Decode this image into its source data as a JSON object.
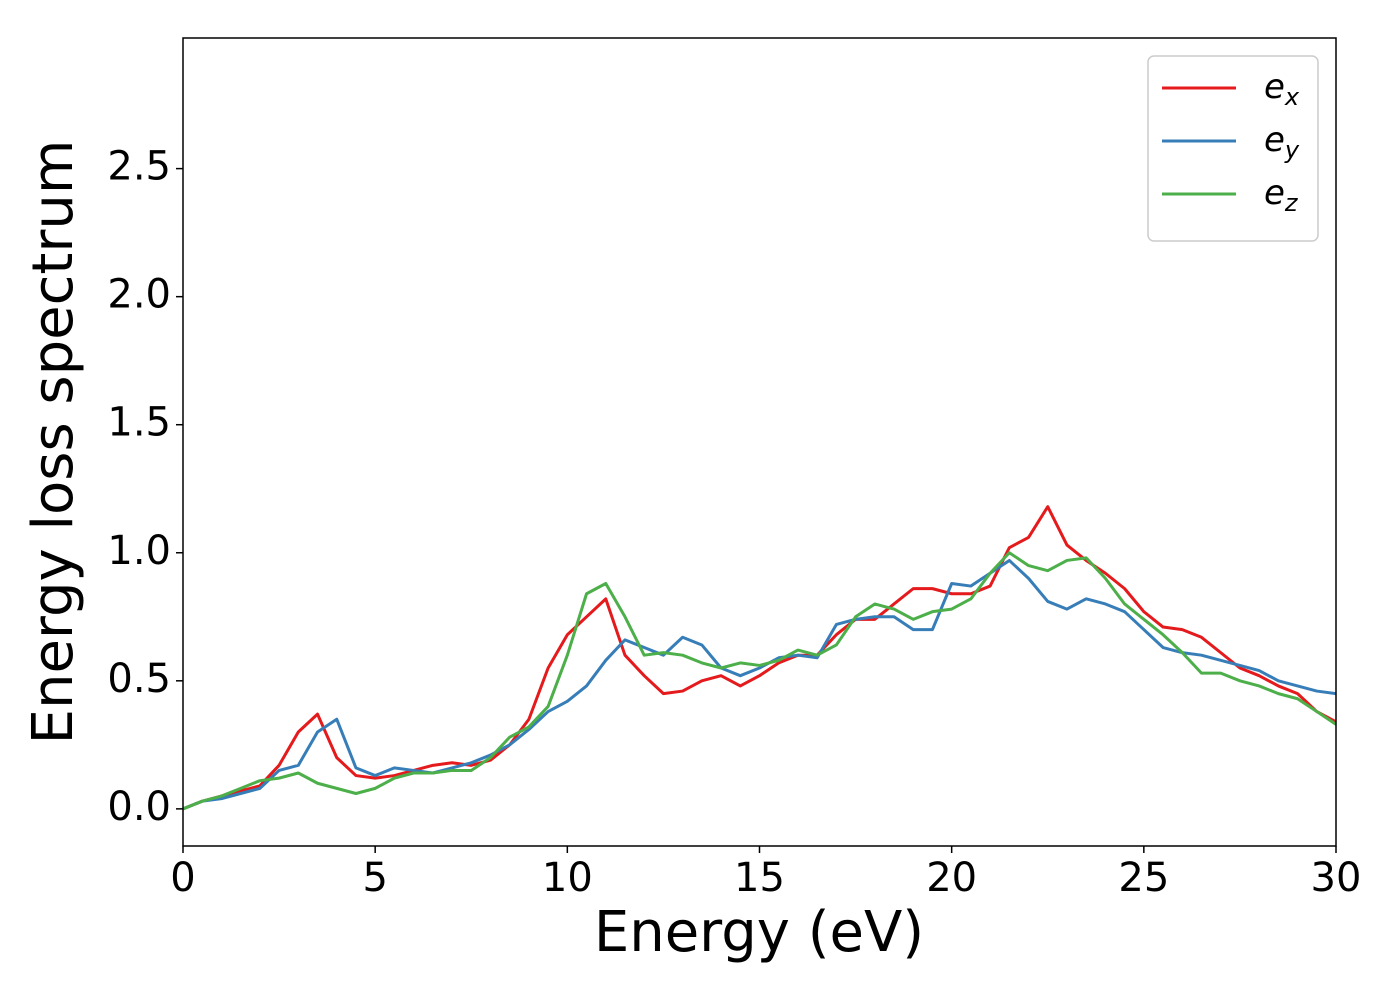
{
  "chart_data": {
    "type": "line",
    "xlabel": "Energy (eV)",
    "ylabel": "Energy loss spectrum",
    "x": [
      0,
      0.5,
      1,
      1.5,
      2,
      2.5,
      3,
      3.5,
      4,
      4.5,
      5,
      5.5,
      6,
      6.5,
      7,
      7.5,
      8,
      8.5,
      9,
      9.5,
      10,
      10.5,
      11,
      11.5,
      12,
      12.5,
      13,
      13.5,
      14,
      14.5,
      15,
      15.5,
      16,
      16.5,
      17,
      17.5,
      18,
      18.5,
      19,
      19.5,
      20,
      20.5,
      21,
      21.5,
      22,
      22.5,
      23,
      23.5,
      24,
      24.5,
      25,
      25.5,
      26,
      26.5,
      27,
      27.5,
      28,
      28.5,
      29,
      29.5,
      30
    ],
    "series": [
      {
        "name": "ex",
        "color": "#e41a1c",
        "values": [
          0,
          0.03,
          0.05,
          0.07,
          0.09,
          0.17,
          0.3,
          0.37,
          0.2,
          0.13,
          0.12,
          0.13,
          0.15,
          0.17,
          0.18,
          0.17,
          0.19,
          0.25,
          0.35,
          0.55,
          0.68,
          0.75,
          0.82,
          0.6,
          0.52,
          0.45,
          0.46,
          0.5,
          0.52,
          0.48,
          0.52,
          0.57,
          0.6,
          0.6,
          0.68,
          0.74,
          0.74,
          0.8,
          0.86,
          0.86,
          0.84,
          0.84,
          0.87,
          1.02,
          1.06,
          1.18,
          1.03,
          0.97,
          0.92,
          0.86,
          0.77,
          0.71,
          0.7,
          0.67,
          0.61,
          0.55,
          0.52,
          0.48,
          0.45,
          0.38,
          0.34
        ]
      },
      {
        "name": "ey",
        "color": "#377eb8",
        "values": [
          0,
          0.03,
          0.04,
          0.06,
          0.08,
          0.15,
          0.17,
          0.3,
          0.35,
          0.16,
          0.13,
          0.16,
          0.15,
          0.14,
          0.16,
          0.18,
          0.21,
          0.25,
          0.31,
          0.38,
          0.42,
          0.48,
          0.58,
          0.66,
          0.63,
          0.6,
          0.67,
          0.64,
          0.55,
          0.52,
          0.55,
          0.59,
          0.6,
          0.59,
          0.72,
          0.74,
          0.75,
          0.75,
          0.7,
          0.7,
          0.88,
          0.87,
          0.92,
          0.97,
          0.9,
          0.81,
          0.78,
          0.82,
          0.8,
          0.77,
          0.7,
          0.63,
          0.61,
          0.6,
          0.58,
          0.56,
          0.54,
          0.5,
          0.48,
          0.46,
          0.45
        ]
      },
      {
        "name": "ez",
        "color": "#4daf4a",
        "values": [
          0,
          0.03,
          0.05,
          0.08,
          0.11,
          0.12,
          0.14,
          0.1,
          0.08,
          0.06,
          0.08,
          0.12,
          0.14,
          0.14,
          0.15,
          0.15,
          0.2,
          0.28,
          0.32,
          0.4,
          0.6,
          0.84,
          0.88,
          0.75,
          0.6,
          0.61,
          0.6,
          0.57,
          0.55,
          0.57,
          0.56,
          0.58,
          0.62,
          0.6,
          0.64,
          0.75,
          0.8,
          0.78,
          0.74,
          0.77,
          0.78,
          0.82,
          0.92,
          1.0,
          0.95,
          0.93,
          0.97,
          0.98,
          0.9,
          0.8,
          0.74,
          0.68,
          0.61,
          0.53,
          0.53,
          0.5,
          0.48,
          0.45,
          0.43,
          0.38,
          0.33
        ]
      }
    ],
    "xlim": [
      0,
      30
    ],
    "xticks": [
      0,
      5,
      10,
      15,
      20,
      25,
      30
    ],
    "ylim": [
      -0.145,
      3.01
    ],
    "yticks": [
      {
        "value": 0,
        "label": "0.0"
      },
      0.5,
      {
        "value": 1,
        "label": "1.0"
      },
      1.5,
      {
        "value": 2,
        "label": "2.0"
      },
      2.5
    ],
    "legend": "upper right",
    "grid": false
  }
}
